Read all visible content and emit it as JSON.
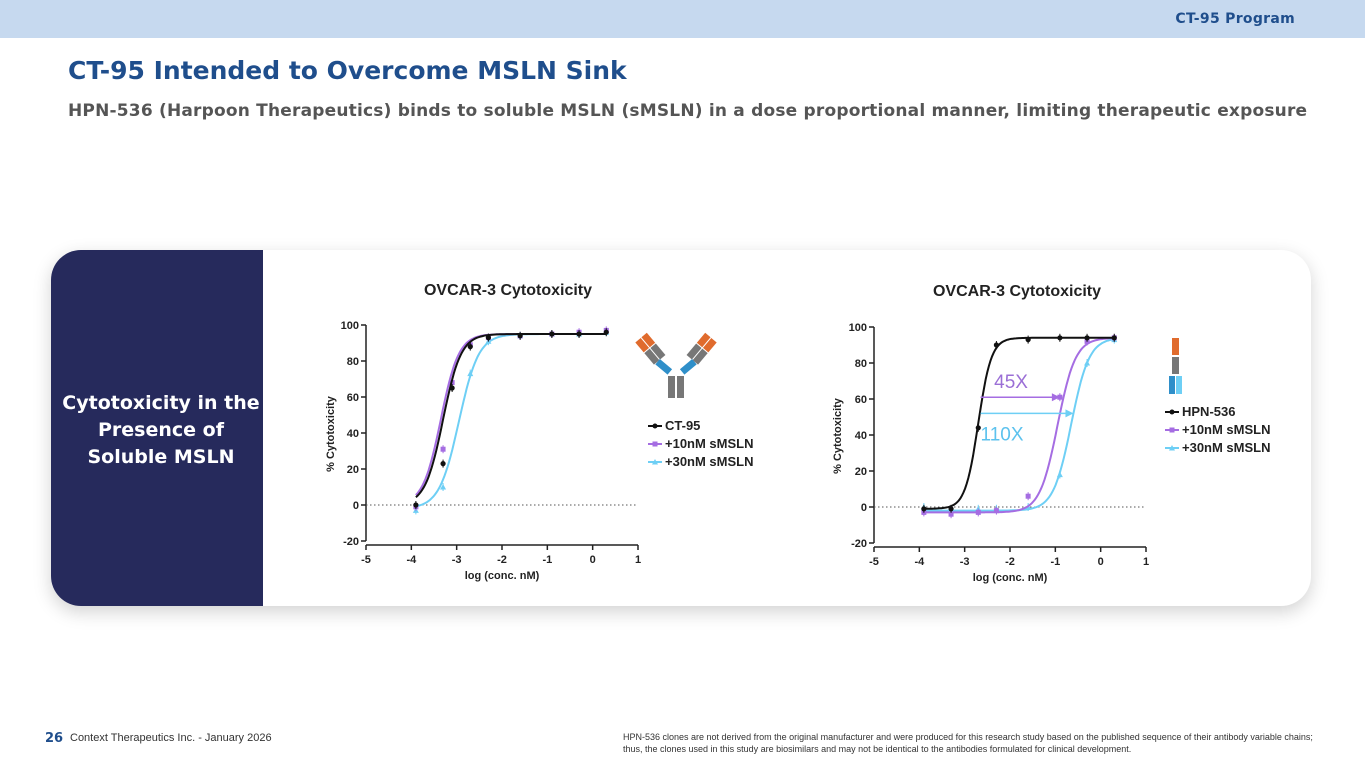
{
  "header": {
    "program": "CT-95 Program"
  },
  "title": "CT-95 Intended to Overcome MSLN Sink",
  "subtitle": "HPN-536 (Harpoon Therapeutics) binds to soluble MSLN (sMSLN) in a dose proportional manner, limiting therapeutic exposure",
  "side_panel": {
    "lines": [
      "Cytotoxicity in the",
      "Presence of",
      "Soluble MSLN"
    ]
  },
  "colors": {
    "black": "#111111",
    "purple": "#a56de2",
    "blue": "#6ecff5",
    "accent_text": "#9b6fd6",
    "blue_text": "#5cc2ee"
  },
  "chart_data": [
    {
      "type": "line",
      "title": "OVCAR-3 Cytotoxicity",
      "xlabel": "log (conc. nM)",
      "ylabel": "% Cytotoxicity",
      "xlim": [
        -5,
        1
      ],
      "ylim": [
        -20,
        100
      ],
      "xticks": [
        -5,
        -4,
        -3,
        -2,
        -1,
        0,
        1
      ],
      "yticks": [
        -20,
        0,
        20,
        40,
        60,
        80,
        100
      ],
      "baseline": 0,
      "series": [
        {
          "name": "CT-95",
          "color": "#111111",
          "fit": {
            "bottom": 0,
            "top": 95,
            "ec50": -3.3,
            "hill": 2.2
          },
          "x": [
            -3.9,
            -3.3,
            -3.1,
            -2.7,
            -2.3,
            -1.6,
            -0.9,
            -0.3,
            0.3
          ],
          "y": [
            0,
            23,
            65,
            88,
            93,
            94,
            95,
            95,
            96
          ]
        },
        {
          "name": "+10nM sMSLN",
          "color": "#a56de2",
          "fit": {
            "bottom": 0,
            "top": 95,
            "ec50": -3.35,
            "hill": 2.2
          },
          "x": [
            -3.9,
            -3.3,
            -3.1,
            -2.7,
            -2.3,
            -1.6,
            -0.9,
            -0.3,
            0.3
          ],
          "y": [
            -1,
            31,
            68,
            89,
            93,
            94,
            95,
            96,
            97
          ]
        },
        {
          "name": "+30nM sMSLN",
          "color": "#6ecff5",
          "fit": {
            "bottom": -2,
            "top": 95,
            "ec50": -2.95,
            "hill": 2.0
          },
          "x": [
            -3.9,
            -3.3,
            -2.7,
            -2.3,
            -1.6,
            -0.9,
            -0.3,
            0.3
          ],
          "y": [
            -3,
            10,
            73,
            91,
            94,
            95,
            95,
            96
          ]
        }
      ],
      "legend": [
        "CT-95",
        "+10nM sMSLN",
        "+30nM sMSLN"
      ]
    },
    {
      "type": "line",
      "title": "OVCAR-3 Cytotoxicity",
      "xlabel": "log (conc. nM)",
      "ylabel": "% Cytotoxicity",
      "xlim": [
        -5,
        1
      ],
      "ylim": [
        -20,
        100
      ],
      "xticks": [
        -5,
        -4,
        -3,
        -2,
        -1,
        0,
        1
      ],
      "yticks": [
        -20,
        0,
        20,
        40,
        60,
        80,
        100
      ],
      "baseline": 0,
      "annotations": [
        {
          "text": "45X",
          "from": -2.65,
          "to": -0.9,
          "y": 61
        },
        {
          "text": "110X",
          "from": -2.65,
          "to": -0.6,
          "y": 52
        }
      ],
      "series": [
        {
          "name": "HPN-536",
          "color": "#111111",
          "fit": {
            "bottom": -1,
            "top": 94,
            "ec50": -2.7,
            "hill": 3.0
          },
          "x": [
            -3.9,
            -3.3,
            -2.7,
            -2.3,
            -1.6,
            -0.9,
            -0.3,
            0.3
          ],
          "y": [
            -1,
            -1,
            44,
            90,
            93,
            94,
            94,
            94
          ]
        },
        {
          "name": "+10nM sMSLN",
          "color": "#a56de2",
          "fit": {
            "bottom": -3,
            "top": 94,
            "ec50": -0.95,
            "hill": 2.2
          },
          "x": [
            -3.9,
            -3.3,
            -2.7,
            -2.3,
            -1.6,
            -0.9,
            -0.3,
            0.3
          ],
          "y": [
            -3,
            -4,
            -3,
            -2,
            6,
            61,
            92,
            94
          ]
        },
        {
          "name": "+30nM sMSLN",
          "color": "#6ecff5",
          "fit": {
            "bottom": -2,
            "top": 94,
            "ec50": -0.65,
            "hill": 2.2
          },
          "x": [
            -3.9,
            -3.3,
            -2.7,
            -2.3,
            -1.6,
            -0.9,
            -0.3,
            0.3
          ],
          "y": [
            0,
            -2,
            -1,
            -1,
            0,
            18,
            80,
            93
          ]
        }
      ],
      "legend": [
        "HPN-536",
        "+10nM sMSLN",
        "+30nM sMSLN"
      ]
    }
  ],
  "footer": {
    "page_number": "26",
    "company": "Context Therapeutics Inc. - January 2026",
    "disclaimer": "HPN-536 clones are not derived from the original manufacturer and were produced for this research study based on the published sequence of their antibody variable chains; thus, the clones used in this study are biosimilars and may not be identical to the antibodies formulated for clinical development."
  }
}
